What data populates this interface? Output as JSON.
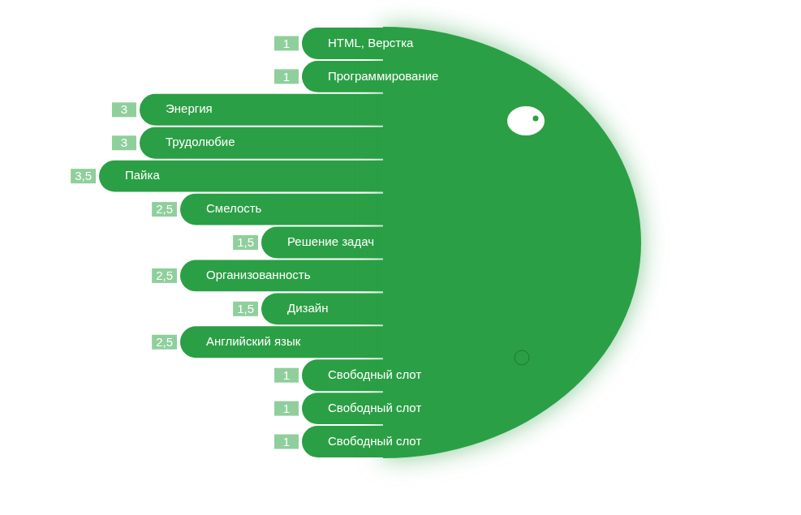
{
  "chart_data": {
    "type": "bar",
    "orientation": "horizontal",
    "categories": [
      "HTML, Верстка",
      "Программирование",
      "Энергия",
      "Трудолюбие",
      "Пайка",
      "Смелость",
      "Решение задач",
      "Организованность",
      "Дизайн",
      "Английский язык",
      "Свободный слот",
      "Свободный слот",
      "Свободный слот"
    ],
    "values": [
      1,
      1,
      3,
      3,
      3.5,
      2.5,
      1.5,
      2.5,
      1.5,
      2.5,
      1,
      1,
      1
    ],
    "value_labels": [
      "1",
      "1",
      "3",
      "3",
      "3,5",
      "2,5",
      "1,5",
      "2,5",
      "1,5",
      "2,5",
      "1",
      "1",
      "1"
    ],
    "color": "#2b9f45",
    "xlim": [
      0,
      4
    ],
    "grid": false,
    "data_labels": true,
    "tick_labels": false
  }
}
